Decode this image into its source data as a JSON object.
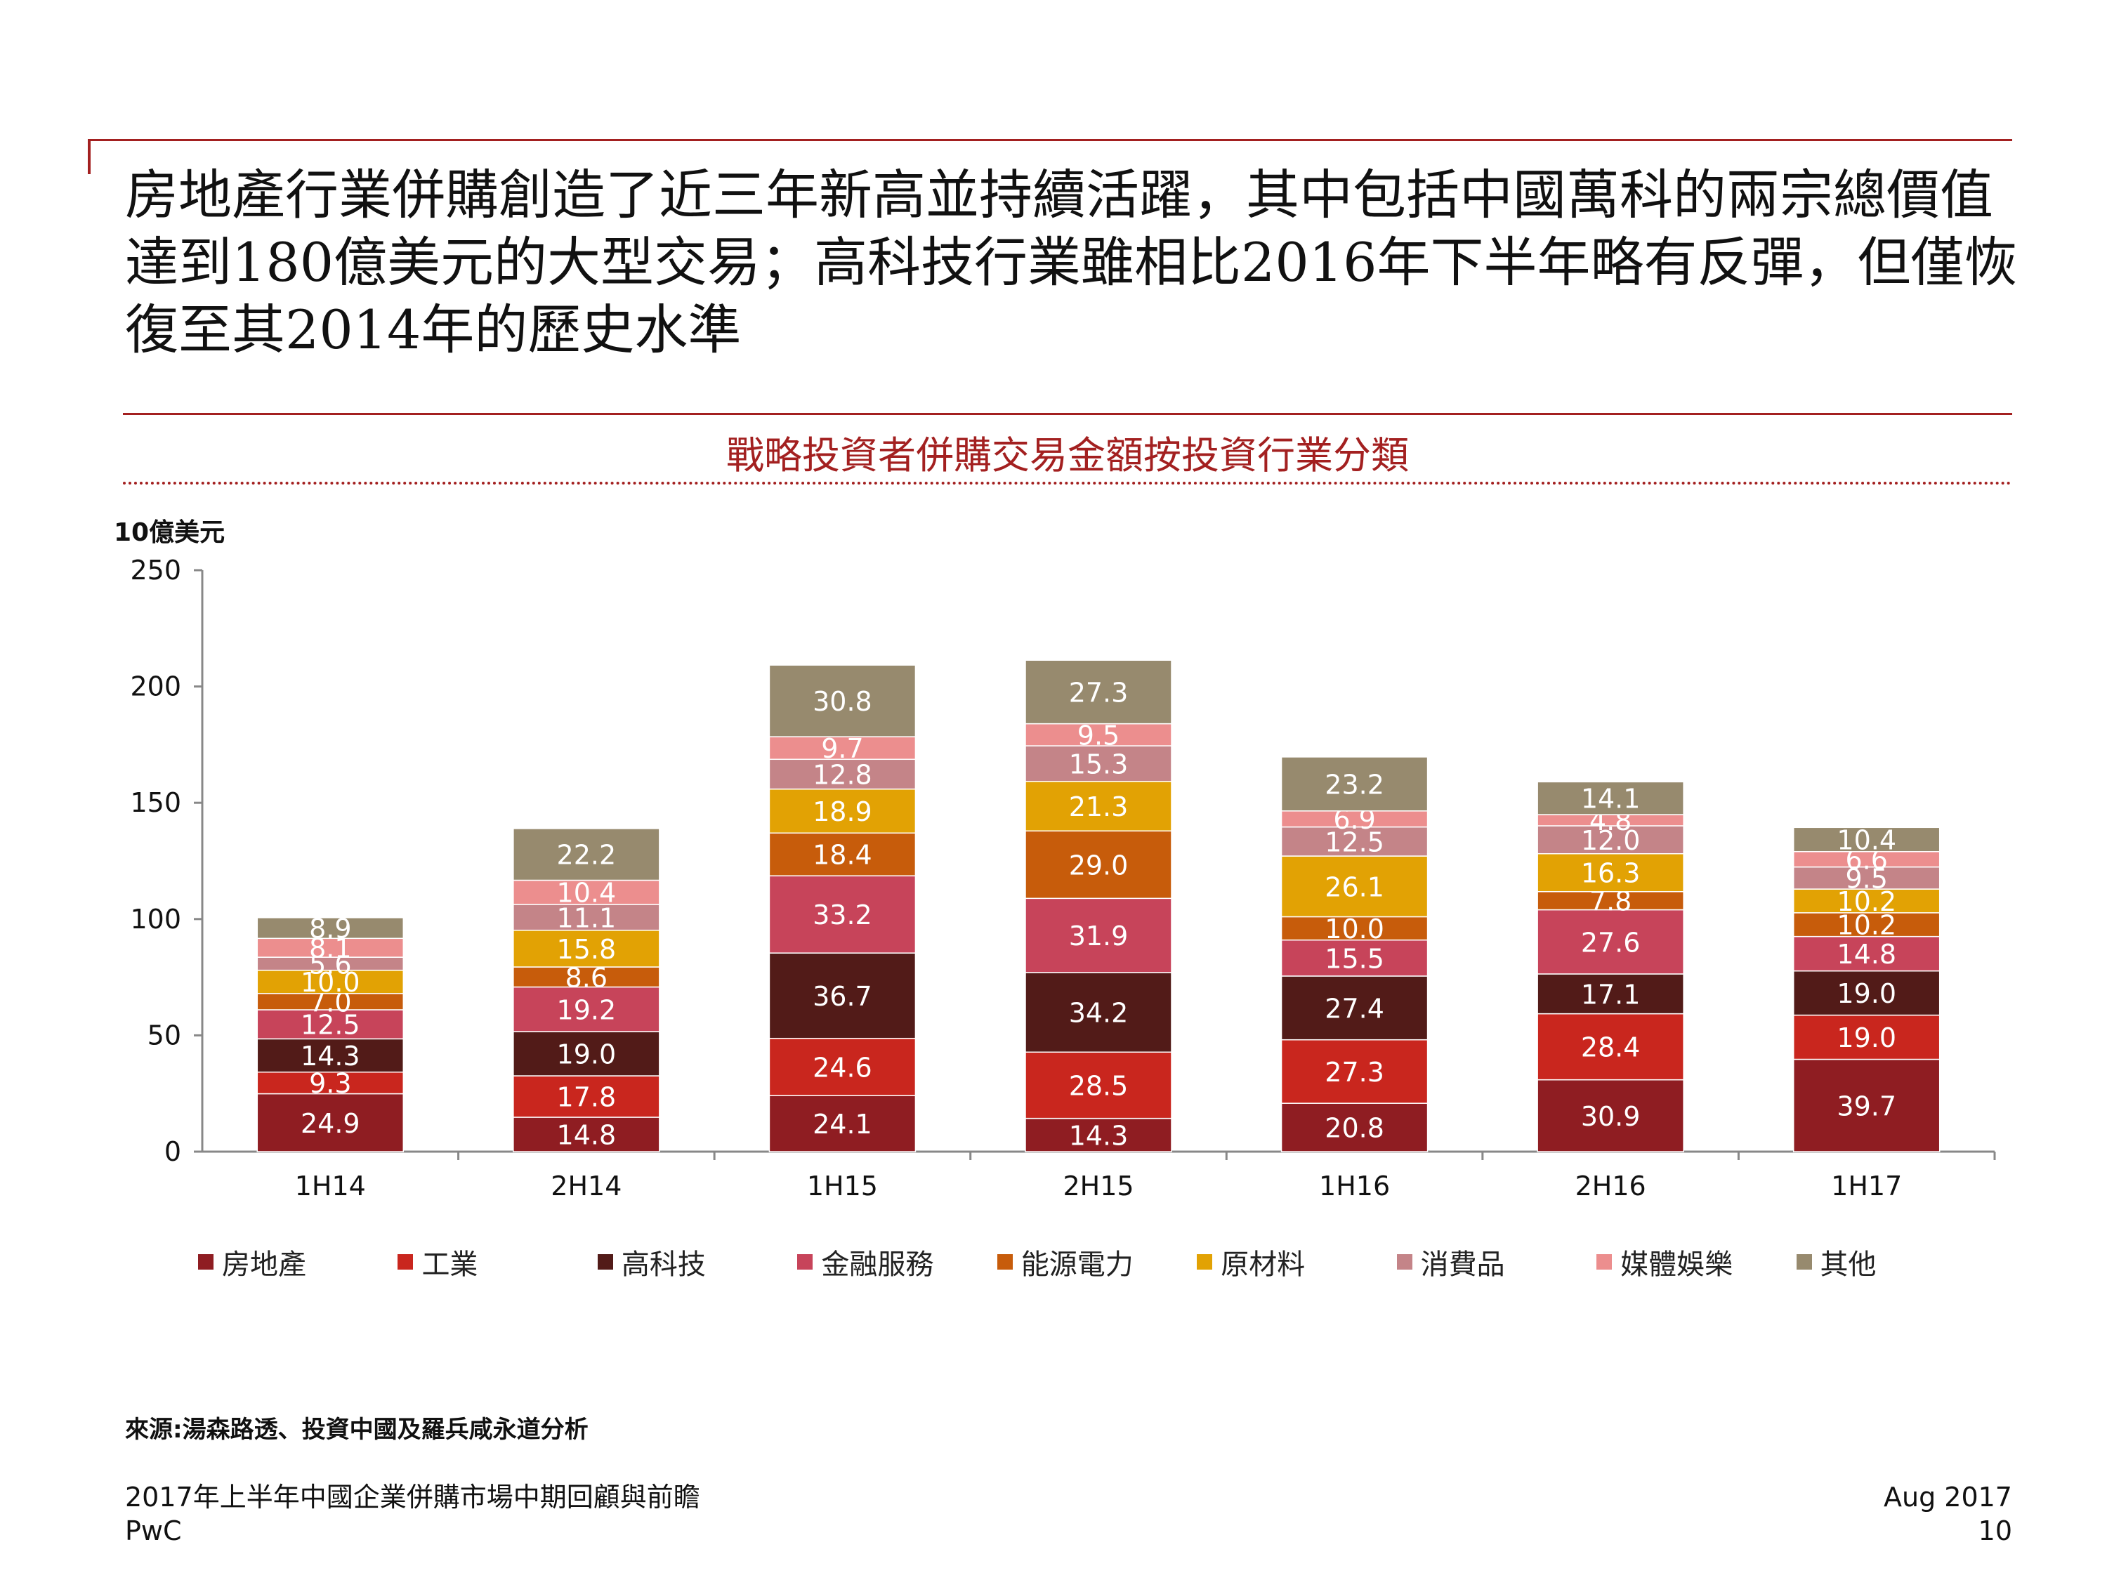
{
  "headline": "房地產行業併購創造了近三年新高並持續活躍，其中包括中國萬科的兩宗總價值達到180億美元的大型交易；高科技行業雖相比2016年下半年略有反彈，但僅恢復至其2014年的歷史水準",
  "footer": {
    "title": "2017年上半年中國企業併購市場中期回顧與前瞻",
    "brand": "PwC",
    "date": "Aug 2017",
    "page": "10"
  },
  "source": "來源:湯森路透、投資中國及羅兵咸永道分析",
  "chart_data": {
    "type": "bar",
    "stacked": true,
    "title": "戰略投資者併購交易金額按投資行業分類",
    "ylabel": "10億美元",
    "xlabel": "",
    "ylim": [
      0,
      250
    ],
    "yticks": [
      0,
      50,
      100,
      150,
      200,
      250
    ],
    "categories": [
      "1H14",
      "2H14",
      "1H15",
      "2H15",
      "1H16",
      "2H16",
      "1H17"
    ],
    "legend_position": "bottom",
    "series": [
      {
        "name": "房地產",
        "color": "#8f1d22",
        "values": [
          24.9,
          14.8,
          24.1,
          14.3,
          20.8,
          30.9,
          39.7
        ]
      },
      {
        "name": "工業",
        "color": "#c9261e",
        "values": [
          9.3,
          17.8,
          24.6,
          28.5,
          27.3,
          28.4,
          19.0
        ]
      },
      {
        "name": "高科技",
        "color": "#521b18",
        "values": [
          14.3,
          19.0,
          36.7,
          34.2,
          27.4,
          17.1,
          19.0
        ]
      },
      {
        "name": "金融服務",
        "color": "#c7445a",
        "values": [
          12.5,
          19.2,
          33.2,
          31.9,
          15.5,
          27.6,
          14.8
        ]
      },
      {
        "name": "能源電力",
        "color": "#c75c0b",
        "values": [
          7.0,
          8.6,
          18.4,
          29.0,
          10.0,
          7.8,
          10.2
        ]
      },
      {
        "name": "原材料",
        "color": "#e2a204",
        "values": [
          10.0,
          15.8,
          18.9,
          21.3,
          26.1,
          16.3,
          10.2
        ]
      },
      {
        "name": "消費品",
        "color": "#c48488",
        "values": [
          5.6,
          11.1,
          12.8,
          15.3,
          12.5,
          12.0,
          9.5
        ]
      },
      {
        "name": "媒體娛樂",
        "color": "#ec8e8e",
        "values": [
          8.1,
          10.4,
          9.7,
          9.5,
          6.9,
          4.8,
          6.6
        ]
      },
      {
        "name": "其他",
        "color": "#978a6e",
        "values": [
          8.9,
          22.2,
          30.8,
          27.3,
          23.2,
          14.1,
          10.4
        ]
      }
    ]
  }
}
